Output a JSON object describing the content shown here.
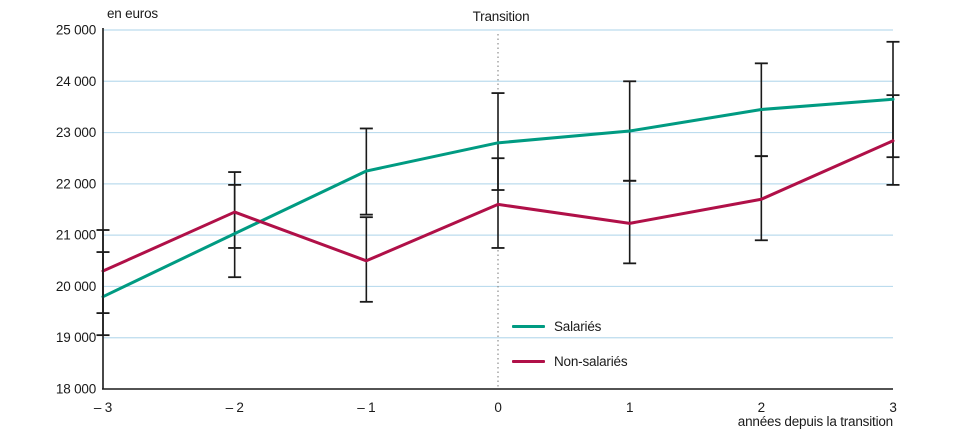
{
  "chart_data": {
    "type": "line",
    "title": "Transition",
    "ylabel": "en euros",
    "xlabel": "années depuis la transition",
    "x": [
      -3,
      -2,
      -1,
      0,
      1,
      2,
      3
    ],
    "x_tick_labels": [
      "– 3",
      "– 2",
      "– 1",
      "0",
      "1",
      "2",
      "3"
    ],
    "ylim": [
      18000,
      25000
    ],
    "y_ticks": [
      18000,
      19000,
      20000,
      21000,
      22000,
      23000,
      24000,
      25000
    ],
    "y_tick_labels": [
      "18 000",
      "19 000",
      "20 000",
      "21 000",
      "22 000",
      "23 000",
      "24 000",
      "25 000"
    ],
    "grid": true,
    "legend_position": "inside-bottom-center",
    "annotations": {
      "transition_x": 0,
      "transition_label": "Transition"
    },
    "series": [
      {
        "name": "Salariés",
        "color": "#009b82",
        "values": [
          19800,
          21030,
          22250,
          22800,
          23030,
          23450,
          23650
        ],
        "error_low": [
          19050,
          20180,
          21400,
          21880,
          22060,
          22540,
          22520
        ],
        "error_high": [
          20670,
          21980,
          23080,
          23770,
          24000,
          24350,
          24770
        ]
      },
      {
        "name": "Non-salariés",
        "color": "#b01048",
        "values": [
          20300,
          21450,
          20500,
          21600,
          21230,
          21700,
          22840
        ],
        "error_low": [
          19480,
          20750,
          19700,
          20750,
          20450,
          20900,
          21980
        ],
        "error_high": [
          21100,
          22230,
          21350,
          22500,
          22060,
          22540,
          23730
        ]
      }
    ]
  },
  "colors": {
    "grid": "#bcdcee",
    "axis": "#1a1a1a",
    "error_bar": "#1a1a1a",
    "transition_line": "#777777",
    "text": "#1a1a1a"
  }
}
